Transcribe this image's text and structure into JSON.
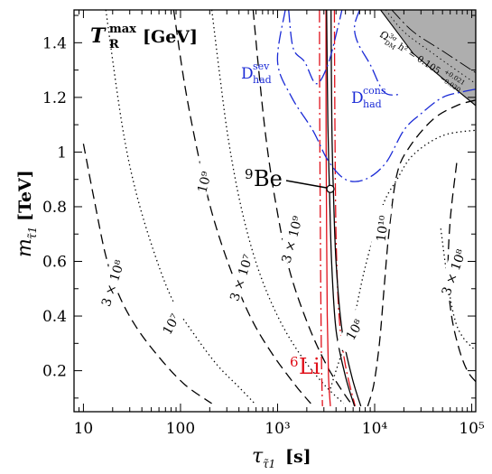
{
  "chart_data": {
    "type": "line",
    "title": "",
    "plot_label": {
      "main": "T",
      "sup": "max",
      "sub": "R",
      "unit": "[GeV]"
    },
    "xlabel": {
      "main": "τ",
      "sub": "τ̃1",
      "unit": "[s]"
    },
    "ylabel": {
      "main": "m",
      "sub": "τ̃1",
      "unit": "[TeV]"
    },
    "x_scale": "log",
    "xlim": [
      8,
      110000
    ],
    "ylim": [
      0.05,
      1.52
    ],
    "x_ticks": [
      {
        "v": 10,
        "label": "10"
      },
      {
        "v": 100,
        "label": "100"
      },
      {
        "v": 1000,
        "label": "10³"
      },
      {
        "v": 10000,
        "label": "10⁴"
      },
      {
        "v": 100000,
        "label": "10⁵"
      }
    ],
    "y_ticks": [
      {
        "v": 0.2,
        "label": "0.2"
      },
      {
        "v": 0.4,
        "label": "0.4"
      },
      {
        "v": 0.6,
        "label": "0.6"
      },
      {
        "v": 0.8,
        "label": "0.8"
      },
      {
        "v": 1.0,
        "label": "1"
      },
      {
        "v": 1.2,
        "label": "1.2"
      },
      {
        "v": 1.4,
        "label": "1.4"
      }
    ],
    "series": [
      {
        "kind": "TRmax",
        "style": "dashed",
        "color": "#000000",
        "points": [
          [
            10,
            1.03
          ],
          [
            13,
            0.82
          ],
          [
            17,
            0.62
          ],
          [
            23,
            0.48
          ],
          [
            35,
            0.36
          ],
          [
            60,
            0.25
          ],
          [
            110,
            0.15
          ],
          [
            210,
            0.08
          ]
        ]
      },
      {
        "kind": "TRmax",
        "style": "dotted",
        "color": "#000000",
        "points": [
          [
            17,
            1.52
          ],
          [
            25,
            1.1
          ],
          [
            35,
            0.85
          ],
          [
            55,
            0.62
          ],
          [
            85,
            0.45
          ],
          [
            140,
            0.33
          ],
          [
            240,
            0.22
          ],
          [
            400,
            0.14
          ],
          [
            580,
            0.08
          ]
        ]
      },
      {
        "kind": "TRmax",
        "style": "dashed",
        "color": "#000000",
        "points": [
          [
            85,
            1.52
          ],
          [
            110,
            1.25
          ],
          [
            150,
            1.0
          ],
          [
            210,
            0.78
          ],
          [
            320,
            0.58
          ],
          [
            520,
            0.4
          ],
          [
            850,
            0.27
          ],
          [
            1500,
            0.15
          ],
          [
            2200,
            0.08
          ]
        ]
      },
      {
        "kind": "TRmax",
        "style": "dotted",
        "color": "#000000",
        "points": [
          [
            210,
            1.52
          ],
          [
            250,
            1.3
          ],
          [
            310,
            1.05
          ],
          [
            420,
            0.8
          ],
          [
            620,
            0.58
          ],
          [
            1000,
            0.4
          ],
          [
            1700,
            0.26
          ],
          [
            3000,
            0.15
          ],
          [
            4800,
            0.08
          ]
        ]
      },
      {
        "kind": "TRmax",
        "style": "dashed",
        "color": "#000000",
        "points": [
          [
            560,
            1.52
          ],
          [
            640,
            1.3
          ],
          [
            760,
            1.05
          ],
          [
            950,
            0.82
          ],
          [
            1300,
            0.58
          ],
          [
            2000,
            0.38
          ],
          [
            3200,
            0.22
          ],
          [
            5200,
            0.1
          ],
          [
            6200,
            0.07
          ]
        ]
      },
      {
        "kind": "TRmax",
        "style": "dotted",
        "color": "#000000",
        "points": [
          [
            3400,
            0.12
          ],
          [
            4000,
            0.2
          ],
          [
            5500,
            0.35
          ],
          [
            6200,
            0.4
          ],
          [
            8000,
            0.58
          ],
          [
            12000,
            0.8
          ],
          [
            17000,
            0.9
          ],
          [
            25000,
            0.99
          ],
          [
            50000,
            1.06
          ],
          [
            110000,
            1.08
          ]
        ]
      },
      {
        "kind": "TRmax",
        "style": "dashed",
        "color": "#000000",
        "points": [
          [
            8500,
            0.07
          ],
          [
            9800,
            0.15
          ],
          [
            11200,
            0.3
          ],
          [
            12500,
            0.5
          ],
          [
            14000,
            0.7
          ],
          [
            17000,
            0.92
          ],
          [
            23000,
            1.02
          ],
          [
            40000,
            1.12
          ],
          [
            70000,
            1.17
          ],
          [
            110000,
            1.19
          ]
        ]
      },
      {
        "kind": "TRmax",
        "style": "dotted",
        "color": "#000000",
        "points": [
          [
            48000,
            0.72
          ],
          [
            58000,
            0.5
          ],
          [
            68000,
            0.38
          ],
          [
            82000,
            0.32
          ],
          [
            105000,
            0.28
          ]
        ]
      },
      {
        "kind": "TRmax",
        "style": "dashed",
        "color": "#000000",
        "points": [
          [
            70000,
            0.96
          ],
          [
            60000,
            0.75
          ],
          [
            57000,
            0.55
          ],
          [
            62000,
            0.4
          ],
          [
            74000,
            0.28
          ],
          [
            90000,
            0.2
          ],
          [
            110000,
            0.16
          ]
        ]
      },
      {
        "kind": "6Li",
        "style": "dashdot",
        "color": "#e0101a",
        "points": [
          [
            2700,
            1.52
          ],
          [
            2720,
            1.1
          ],
          [
            2760,
            0.7
          ],
          [
            2800,
            0.4
          ],
          [
            2850,
            0.18
          ],
          [
            2900,
            0.07
          ]
        ]
      },
      {
        "kind": "6Li",
        "style": "dashdot",
        "color": "#e0101a",
        "points": [
          [
            3850,
            1.52
          ],
          [
            3900,
            1.1
          ],
          [
            4000,
            0.7
          ],
          [
            4300,
            0.4
          ],
          [
            5000,
            0.22
          ],
          [
            6300,
            0.07
          ]
        ]
      },
      {
        "kind": "6Li",
        "style": "solid",
        "color": "#e0101a",
        "points": [
          [
            3150,
            1.52
          ],
          [
            3160,
            1.1
          ],
          [
            3200,
            0.7
          ],
          [
            3250,
            0.4
          ],
          [
            3350,
            0.18
          ],
          [
            3500,
            0.07
          ]
        ]
      },
      {
        "kind": "9Be",
        "style": "solid",
        "color": "#000000",
        "points": [
          [
            3200,
            1.52
          ],
          [
            3300,
            1.1
          ],
          [
            3420,
            0.87
          ],
          [
            3600,
            0.6
          ],
          [
            4000,
            0.35
          ],
          [
            5000,
            0.18
          ],
          [
            6200,
            0.07
          ]
        ]
      },
      {
        "kind": "9Be",
        "style": "solid",
        "color": "#000000",
        "points": [
          [
            3550,
            1.52
          ],
          [
            3620,
            1.1
          ],
          [
            3750,
            0.87
          ],
          [
            4000,
            0.6
          ],
          [
            4600,
            0.35
          ],
          [
            5800,
            0.18
          ],
          [
            7200,
            0.07
          ]
        ]
      },
      {
        "kind": "Dhad_sev",
        "style": "dashdot",
        "color": "#1a2ad6",
        "points": [
          [
            1300,
            1.52
          ],
          [
            1450,
            1.38
          ],
          [
            1900,
            1.33
          ],
          [
            2500,
            1.25
          ],
          [
            3300,
            1.32
          ],
          [
            4200,
            1.46
          ],
          [
            4600,
            1.52
          ]
        ]
      },
      {
        "kind": "Dhad_cons",
        "style": "dashdot",
        "color": "#1a2ad6",
        "points": [
          [
            1200,
            1.52
          ],
          [
            1000,
            1.33
          ],
          [
            1400,
            1.2
          ],
          [
            2300,
            1.08
          ],
          [
            3300,
            0.97
          ],
          [
            5000,
            0.9
          ],
          [
            8000,
            0.9
          ],
          [
            13000,
            0.96
          ],
          [
            20000,
            1.08
          ],
          [
            30000,
            1.14
          ],
          [
            50000,
            1.2
          ],
          [
            80000,
            1.22
          ],
          [
            110000,
            1.23
          ]
        ]
      },
      {
        "kind": "Dhad_cons_upper",
        "style": "dashdot",
        "color": "#1a2ad6",
        "points": [
          [
            7000,
            1.52
          ],
          [
            6200,
            1.46
          ],
          [
            6700,
            1.4
          ],
          [
            9000,
            1.32
          ],
          [
            12500,
            1.22
          ],
          [
            18000,
            1.21
          ]
        ]
      },
      {
        "kind": "DM_band_inner",
        "style": "dotted",
        "color": "#000000",
        "points": [
          [
            13000,
            1.52
          ],
          [
            20000,
            1.44
          ],
          [
            40000,
            1.36
          ],
          [
            110000,
            1.25
          ]
        ]
      },
      {
        "kind": "DM_band_inner",
        "style": "dashdot",
        "color": "#000000",
        "points": [
          [
            15000,
            1.52
          ],
          [
            25000,
            1.44
          ],
          [
            50000,
            1.37
          ],
          [
            110000,
            1.29
          ]
        ]
      }
    ],
    "band": {
      "name": "Ω_DM h²",
      "upper": [
        [
          11500,
          1.52
        ],
        [
          20000,
          1.52
        ],
        [
          40000,
          1.52
        ],
        [
          110000,
          1.52
        ]
      ],
      "lower": [
        [
          110000,
          1.17
        ],
        [
          50000,
          1.27
        ],
        [
          25000,
          1.36
        ],
        [
          11500,
          1.52
        ]
      ],
      "fill": "#aeaeae"
    },
    "marker": {
      "x": 3500,
      "y": 0.865
    },
    "contour_labels": [
      {
        "text": "3 × 10⁸",
        "x": 20,
        "y": 0.52,
        "rot": -72,
        "color": "#000000"
      },
      {
        "text": "10⁷",
        "x": 80,
        "y": 0.37,
        "rot": -60,
        "color": "#000000"
      },
      {
        "text": "10⁹",
        "x": 175,
        "y": 0.89,
        "rot": -75,
        "color": "#000000"
      },
      {
        "text": "3 × 10⁷",
        "x": 420,
        "y": 0.54,
        "rot": -72,
        "color": "#000000"
      },
      {
        "text": "3 × 10⁹",
        "x": 1400,
        "y": 0.68,
        "rot": -75,
        "color": "#000000"
      },
      {
        "text": "10⁸",
        "x": 6200,
        "y": 0.35,
        "rot": -60,
        "color": "#000000"
      },
      {
        "text": "10¹⁰",
        "x": 12000,
        "y": 0.72,
        "rot": -82,
        "color": "#000000"
      },
      {
        "text": "3 × 10⁸",
        "x": 65000,
        "y": 0.56,
        "rot": -70,
        "color": "#000000"
      }
    ],
    "annotations": {
      "be9": {
        "text": "Be",
        "sup": "9",
        "color": "#000000"
      },
      "li6": {
        "text": "Li",
        "sup": "6",
        "color": "#e0101a"
      },
      "dhad_sev": {
        "text": "D",
        "sup": "sev",
        "sub": "had",
        "color": "#1a2ad6"
      },
      "dhad_cons": {
        "text": "D",
        "sup": "cons",
        "sub": "had",
        "color": "#1a2ad6"
      },
      "omega_band": {
        "text": "Ω",
        "sup": "3σ",
        "sub": "DM",
        "tail": "h² = 0.105",
        "sup2": "+0.021",
        "sub2": "−0.030"
      }
    }
  }
}
